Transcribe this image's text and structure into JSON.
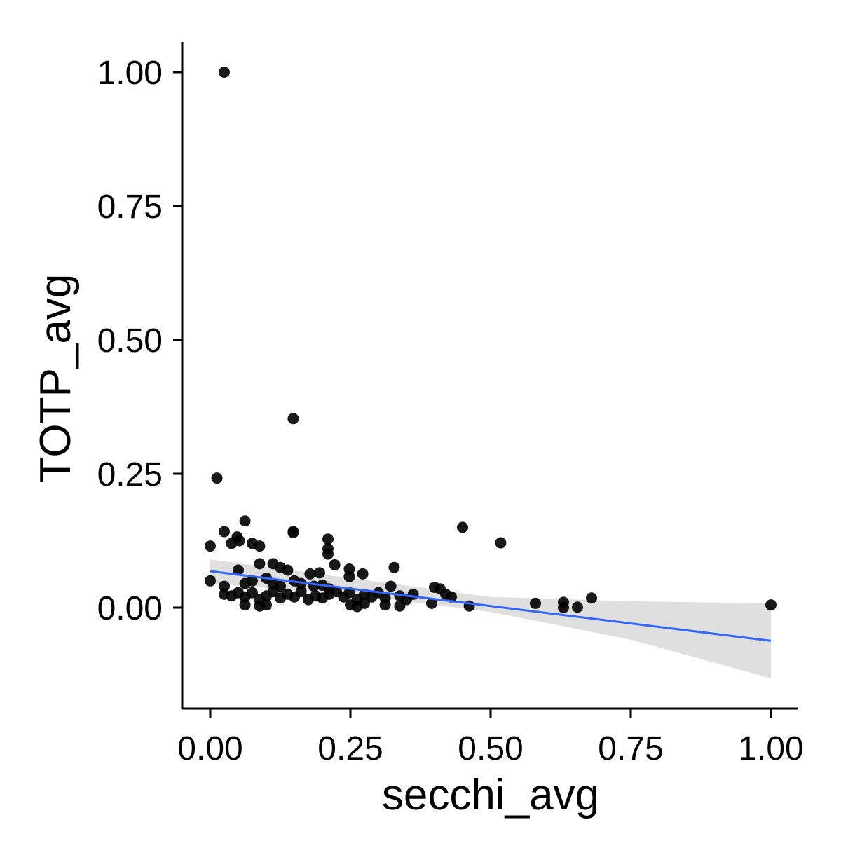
{
  "chart_data": {
    "type": "scatter",
    "title": "",
    "xlabel": "secchi_avg",
    "ylabel": "TOTP_avg",
    "xlim": [
      -0.1,
      1.1
    ],
    "ylim": [
      -0.19,
      1.06
    ],
    "x_ticks": [
      0.0,
      0.25,
      0.5,
      0.75,
      1.0
    ],
    "x_tick_labels": [
      "0.00",
      "0.25",
      "0.50",
      "0.75",
      "1.00"
    ],
    "y_ticks": [
      0.0,
      0.25,
      0.5,
      0.75,
      1.0
    ],
    "y_tick_labels": [
      "0.00",
      "0.25",
      "0.50",
      "0.75",
      "1.00"
    ],
    "grid": false,
    "legend": "none",
    "point_color": "#000000",
    "points": [
      {
        "x": 0.025,
        "y": 1.0
      },
      {
        "x": 0.148,
        "y": 0.353
      },
      {
        "x": 0.012,
        "y": 0.242
      },
      {
        "x": 0.062,
        "y": 0.162
      },
      {
        "x": 0.025,
        "y": 0.142
      },
      {
        "x": 0.148,
        "y": 0.142
      },
      {
        "x": 0.148,
        "y": 0.14
      },
      {
        "x": 0.45,
        "y": 0.15
      },
      {
        "x": 0.518,
        "y": 0.121
      },
      {
        "x": 0.0,
        "y": 0.115
      },
      {
        "x": 0.038,
        "y": 0.12
      },
      {
        "x": 0.048,
        "y": 0.132
      },
      {
        "x": 0.052,
        "y": 0.125
      },
      {
        "x": 0.075,
        "y": 0.12
      },
      {
        "x": 0.088,
        "y": 0.115
      },
      {
        "x": 0.21,
        "y": 0.128
      },
      {
        "x": 0.21,
        "y": 0.11
      },
      {
        "x": 0.21,
        "y": 0.1
      },
      {
        "x": 0.0,
        "y": 0.05
      },
      {
        "x": 0.05,
        "y": 0.07
      },
      {
        "x": 0.088,
        "y": 0.082
      },
      {
        "x": 0.112,
        "y": 0.082
      },
      {
        "x": 0.125,
        "y": 0.075
      },
      {
        "x": 0.138,
        "y": 0.07
      },
      {
        "x": 0.178,
        "y": 0.063
      },
      {
        "x": 0.195,
        "y": 0.065
      },
      {
        "x": 0.222,
        "y": 0.08
      },
      {
        "x": 0.248,
        "y": 0.072
      },
      {
        "x": 0.248,
        "y": 0.058
      },
      {
        "x": 0.272,
        "y": 0.063
      },
      {
        "x": 0.328,
        "y": 0.075
      },
      {
        "x": 0.025,
        "y": 0.04
      },
      {
        "x": 0.062,
        "y": 0.045
      },
      {
        "x": 0.075,
        "y": 0.05
      },
      {
        "x": 0.1,
        "y": 0.055
      },
      {
        "x": 0.112,
        "y": 0.045
      },
      {
        "x": 0.125,
        "y": 0.04
      },
      {
        "x": 0.15,
        "y": 0.05
      },
      {
        "x": 0.162,
        "y": 0.045
      },
      {
        "x": 0.185,
        "y": 0.04
      },
      {
        "x": 0.2,
        "y": 0.042
      },
      {
        "x": 0.212,
        "y": 0.035
      },
      {
        "x": 0.025,
        "y": 0.025
      },
      {
        "x": 0.038,
        "y": 0.022
      },
      {
        "x": 0.05,
        "y": 0.028
      },
      {
        "x": 0.062,
        "y": 0.02
      },
      {
        "x": 0.075,
        "y": 0.028
      },
      {
        "x": 0.088,
        "y": 0.015
      },
      {
        "x": 0.1,
        "y": 0.022
      },
      {
        "x": 0.112,
        "y": 0.03
      },
      {
        "x": 0.125,
        "y": 0.018
      },
      {
        "x": 0.138,
        "y": 0.025
      },
      {
        "x": 0.15,
        "y": 0.02
      },
      {
        "x": 0.162,
        "y": 0.03
      },
      {
        "x": 0.175,
        "y": 0.015
      },
      {
        "x": 0.188,
        "y": 0.022
      },
      {
        "x": 0.2,
        "y": 0.018
      },
      {
        "x": 0.212,
        "y": 0.025
      },
      {
        "x": 0.225,
        "y": 0.03
      },
      {
        "x": 0.238,
        "y": 0.02
      },
      {
        "x": 0.248,
        "y": 0.028
      },
      {
        "x": 0.262,
        "y": 0.015
      },
      {
        "x": 0.275,
        "y": 0.025
      },
      {
        "x": 0.288,
        "y": 0.02
      },
      {
        "x": 0.3,
        "y": 0.028
      },
      {
        "x": 0.312,
        "y": 0.018
      },
      {
        "x": 0.322,
        "y": 0.04
      },
      {
        "x": 0.338,
        "y": 0.022
      },
      {
        "x": 0.35,
        "y": 0.015
      },
      {
        "x": 0.362,
        "y": 0.025
      },
      {
        "x": 0.062,
        "y": 0.005
      },
      {
        "x": 0.088,
        "y": 0.003
      },
      {
        "x": 0.1,
        "y": 0.005
      },
      {
        "x": 0.25,
        "y": 0.005
      },
      {
        "x": 0.262,
        "y": 0.002
      },
      {
        "x": 0.275,
        "y": 0.008
      },
      {
        "x": 0.312,
        "y": 0.005
      },
      {
        "x": 0.338,
        "y": 0.003
      },
      {
        "x": 0.395,
        "y": 0.008
      },
      {
        "x": 0.4,
        "y": 0.038
      },
      {
        "x": 0.41,
        "y": 0.035
      },
      {
        "x": 0.42,
        "y": 0.025
      },
      {
        "x": 0.43,
        "y": 0.02
      },
      {
        "x": 0.462,
        "y": 0.003
      },
      {
        "x": 0.58,
        "y": 0.008
      },
      {
        "x": 0.63,
        "y": 0.01
      },
      {
        "x": 0.63,
        "y": 0.0
      },
      {
        "x": 0.655,
        "y": 0.001
      },
      {
        "x": 0.68,
        "y": 0.018
      },
      {
        "x": 1.0,
        "y": 0.005
      }
    ],
    "regression": {
      "color": "#3366FF",
      "band_color": "#D9D9D9",
      "x": [
        0.0,
        1.0
      ],
      "y": [
        0.068,
        -0.062
      ],
      "band_lower": [
        {
          "x": 0.0,
          "y": 0.045
        },
        {
          "x": 0.25,
          "y": 0.025
        },
        {
          "x": 0.5,
          "y": -0.008
        },
        {
          "x": 0.75,
          "y": -0.06
        },
        {
          "x": 1.0,
          "y": -0.132
        }
      ],
      "band_upper": [
        {
          "x": 0.0,
          "y": 0.09
        },
        {
          "x": 0.25,
          "y": 0.055
        },
        {
          "x": 0.5,
          "y": 0.02
        },
        {
          "x": 0.75,
          "y": 0.012
        },
        {
          "x": 1.0,
          "y": 0.008
        }
      ]
    }
  }
}
